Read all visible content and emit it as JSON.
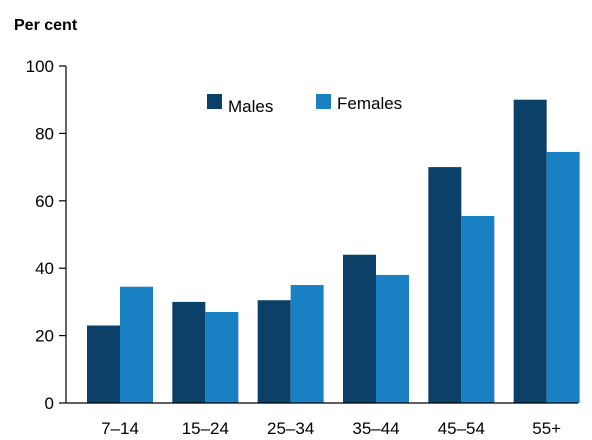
{
  "chart_data": {
    "type": "bar",
    "ylabel": "Per cent",
    "xlabel": "",
    "categories": [
      "7–14",
      "15–24",
      "25–34",
      "35–44",
      "45–54",
      "55+"
    ],
    "series": [
      {
        "name": "Males",
        "color": "#0b4168",
        "values": [
          23,
          30,
          30.5,
          44,
          70,
          90
        ]
      },
      {
        "name": "Females",
        "color": "#1a80c4",
        "values": [
          34.5,
          27,
          35,
          38,
          55.5,
          74.5
        ]
      }
    ],
    "ylim": [
      0,
      100
    ],
    "yticks": [
      "0",
      "20",
      "40",
      "60",
      "80",
      "100"
    ],
    "grid": false,
    "legend_position": "top-center"
  }
}
